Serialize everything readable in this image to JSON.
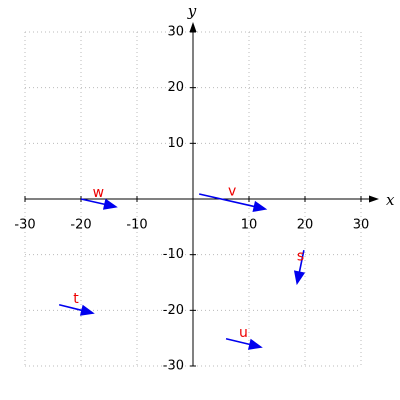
{
  "chart_data": {
    "type": "vector",
    "x_label": "x",
    "y_label": "y",
    "xlim": [
      -30,
      30
    ],
    "ylim": [
      -30,
      30
    ],
    "xticks": [
      -30,
      -20,
      -10,
      10,
      20,
      30
    ],
    "yticks": [
      -30,
      -20,
      -10,
      10,
      20,
      30
    ],
    "grid": true,
    "arrow_color": "#0000ee",
    "label_color": "#ee0000",
    "vectors": [
      {
        "label": "w",
        "x": -20,
        "y": 0,
        "x2": -13.8,
        "y2": -1.4
      },
      {
        "label": "v",
        "x": 1.1,
        "y": 0.9,
        "x2": 12.9,
        "y2": -1.8
      },
      {
        "label": "s",
        "x": 19.8,
        "y": -9.2,
        "x2": 18.6,
        "y2": -15.1
      },
      {
        "label": "t",
        "x": -23.9,
        "y": -19,
        "x2": -17.9,
        "y2": -20.5
      },
      {
        "label": "u",
        "x": 5.9,
        "y": -25.1,
        "x2": 12.1,
        "y2": -26.6
      }
    ]
  }
}
